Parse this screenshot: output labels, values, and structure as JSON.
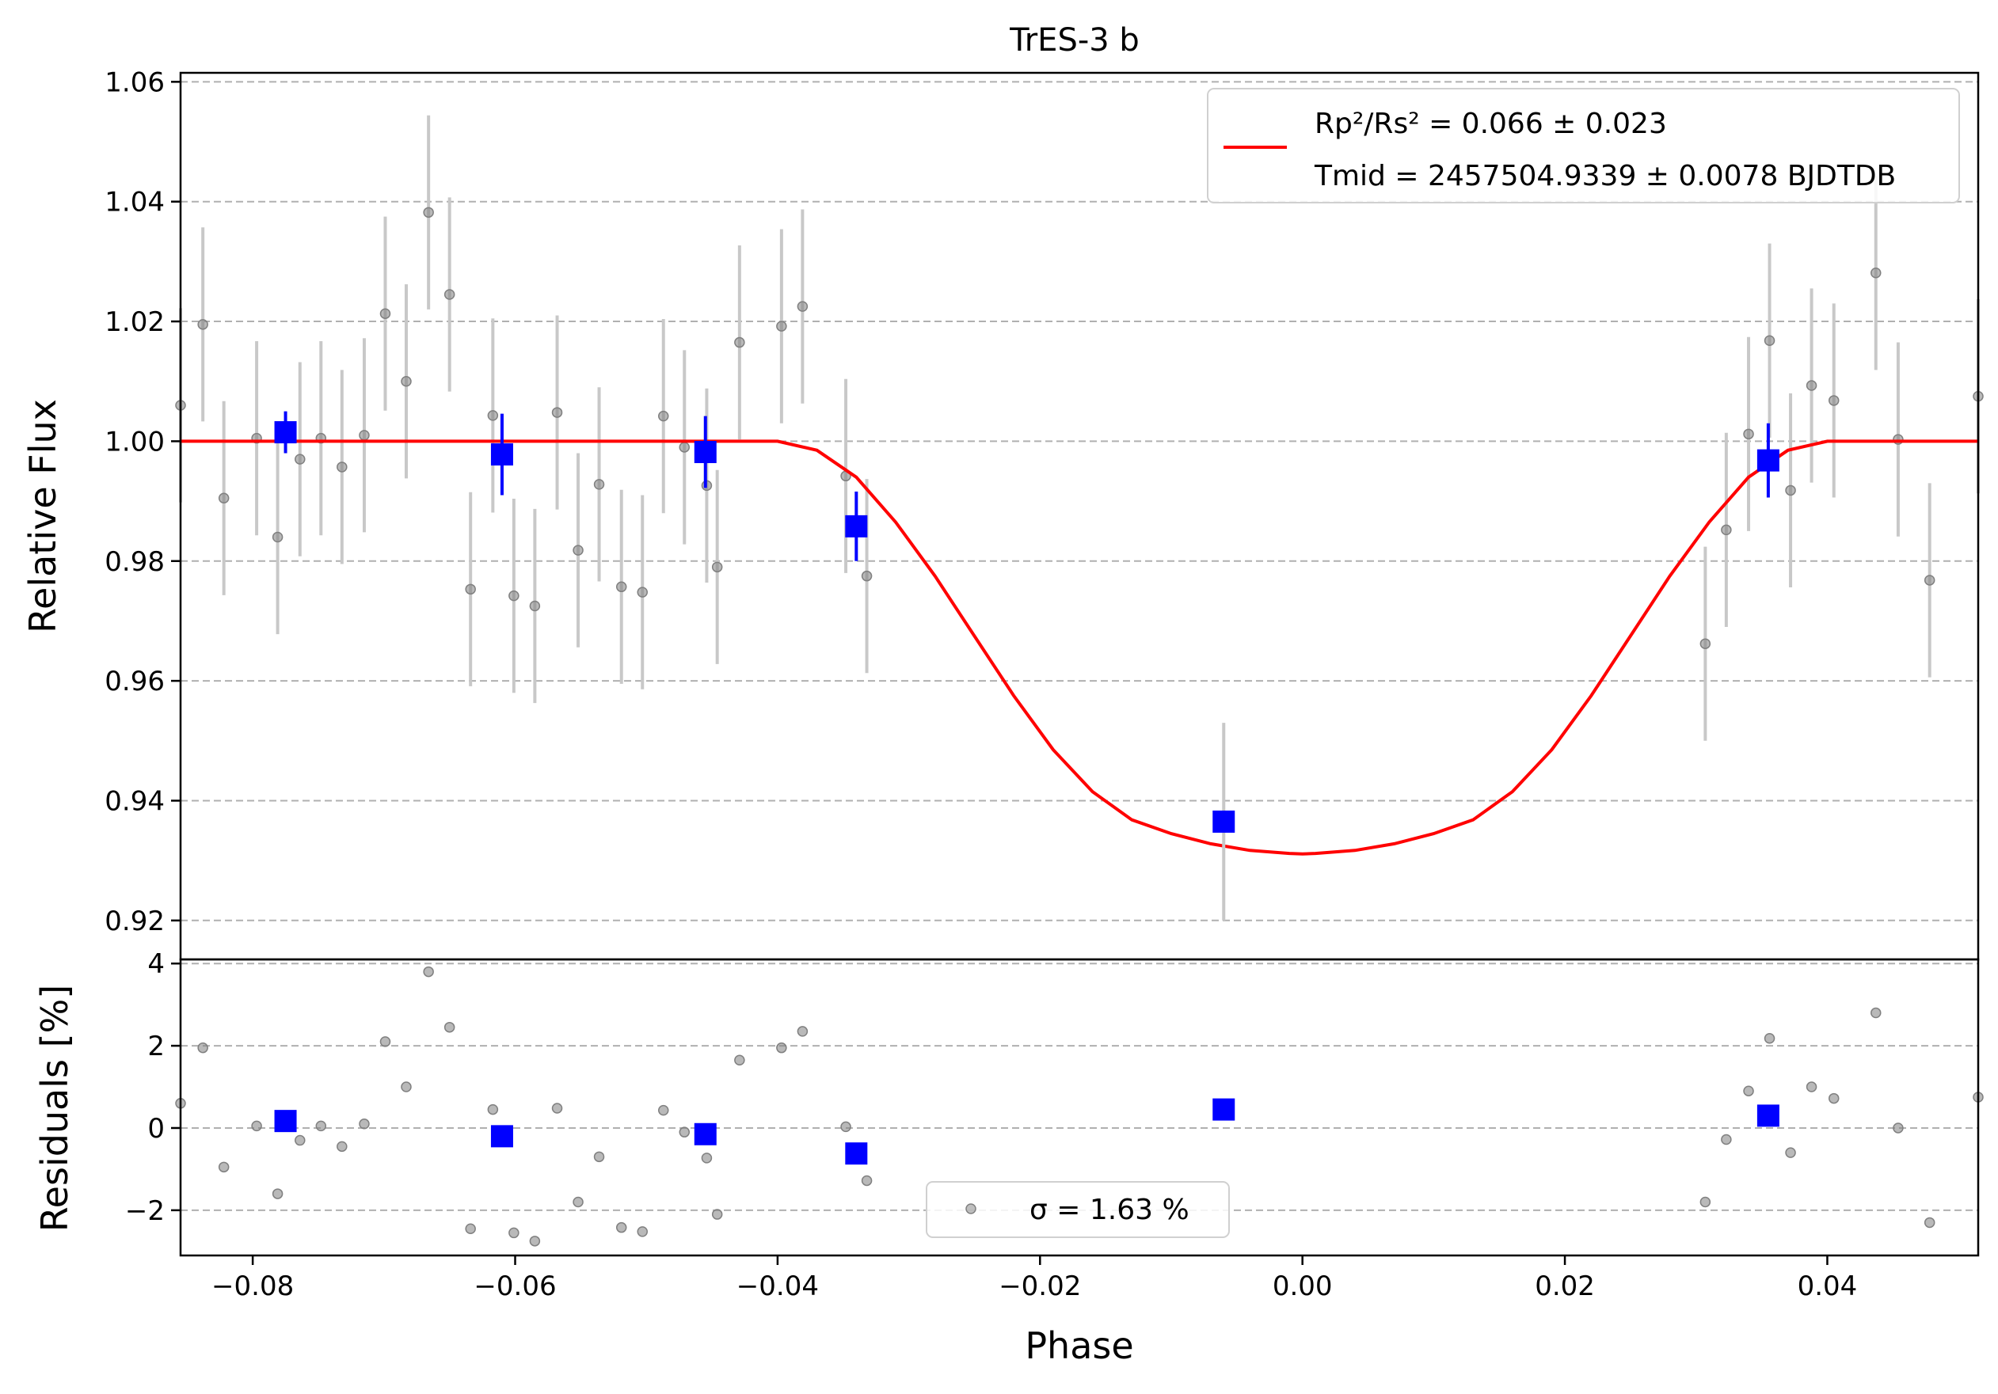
{
  "chart_data": {
    "type": "scatter",
    "title": "TrES-3 b",
    "xlabel": "Phase",
    "top_panel": {
      "ylabel": "Relative Flux",
      "xlim": [
        -0.0855,
        0.0515
      ],
      "ylim": [
        0.9135,
        1.0615
      ],
      "yticks": [
        0.92,
        0.94,
        0.96,
        0.98,
        1.0,
        1.02,
        1.04,
        1.06
      ],
      "ytick_labels": [
        "0.92",
        "0.94",
        "0.96",
        "0.98",
        "1.00",
        "1.02",
        "1.04",
        "1.06"
      ],
      "grid": "horizontal dashed",
      "legend_position": "top-right",
      "legend": {
        "model_line": "Rp²/Rs² = 0.066 ± 0.023",
        "mid_time": "Tmid = 2457504.9339 ± 0.0078 BJDTDB"
      },
      "model": {
        "name": "transit model",
        "color": "#ff0000",
        "phase": [
          -0.0855,
          -0.04,
          -0.037,
          -0.034,
          -0.031,
          -0.028,
          -0.025,
          -0.022,
          -0.019,
          -0.016,
          -0.013,
          -0.01,
          -0.007,
          -0.004,
          -0.001,
          0.0,
          0.001,
          0.004,
          0.007,
          0.01,
          0.013,
          0.016,
          0.019,
          0.022,
          0.025,
          0.028,
          0.031,
          0.034,
          0.037,
          0.04,
          0.0515
        ],
        "flux": [
          1.0,
          1.0,
          0.9985,
          0.994,
          0.9865,
          0.9775,
          0.9675,
          0.9575,
          0.9485,
          0.9415,
          0.9368,
          0.9345,
          0.9328,
          0.9317,
          0.9312,
          0.9311,
          0.9312,
          0.9317,
          0.9328,
          0.9345,
          0.9368,
          0.9415,
          0.9485,
          0.9575,
          0.9675,
          0.9775,
          0.9865,
          0.994,
          0.9985,
          1.0,
          1.0
        ]
      },
      "raw_points": {
        "color": "#808080",
        "phase": [
          -0.0855,
          -0.0838,
          -0.0822,
          -0.0797,
          -0.0781,
          -0.0764,
          -0.0748,
          -0.0732,
          -0.0715,
          -0.0699,
          -0.0683,
          -0.0666,
          -0.065,
          -0.0634,
          -0.0617,
          -0.0601,
          -0.0585,
          -0.0568,
          -0.0552,
          -0.0536,
          -0.0519,
          -0.0503,
          -0.0487,
          -0.0471,
          -0.0454,
          -0.0446,
          -0.0429,
          -0.0397,
          -0.0381,
          -0.0348,
          -0.0332,
          0.0307,
          0.0323,
          0.034,
          0.0356,
          0.0372,
          0.0388,
          0.0405,
          0.0437,
          0.0454,
          0.0478,
          0.0515
        ],
        "flux": [
          1.006,
          1.0195,
          0.9905,
          1.0005,
          0.984,
          0.997,
          1.0005,
          0.9957,
          1.001,
          1.0213,
          1.01,
          1.0382,
          1.0245,
          0.9753,
          1.0043,
          0.9742,
          0.9725,
          1.0048,
          0.9818,
          0.9928,
          0.9757,
          0.9748,
          1.0042,
          0.999,
          0.9926,
          0.979,
          1.0165,
          1.0192,
          1.0225,
          0.9942,
          0.9775,
          0.9662,
          0.9852,
          1.0012,
          1.0168,
          0.9918,
          1.0093,
          1.0068,
          1.0281,
          1.0003,
          0.9768,
          1.0075
        ],
        "error": 0.0162
      },
      "binned_points": {
        "color": "#0000ff",
        "phase": [
          -0.0775,
          -0.061,
          -0.0455,
          -0.034,
          -0.006,
          0.0355
        ],
        "flux": [
          1.0015,
          0.9978,
          0.9982,
          0.9858,
          0.9365,
          0.9968
        ],
        "error": [
          0.0035,
          0.0068,
          0.006,
          0.0058,
          0.0165,
          0.0062
        ],
        "error_color": [
          "#0000ff",
          "#0000ff",
          "#0000ff",
          "#0000ff",
          "#c8c8c8",
          "#0000ff"
        ]
      }
    },
    "bottom_panel": {
      "ylabel": "Residuals [%]",
      "xlim": [
        -0.0855,
        0.0515
      ],
      "ylim": [
        -3.1,
        4.1
      ],
      "yticks": [
        -2,
        0,
        2,
        4
      ],
      "ytick_labels": [
        "−2",
        "0",
        "2",
        "4"
      ],
      "xticks": [
        -0.08,
        -0.06,
        -0.04,
        -0.02,
        0.0,
        0.02,
        0.04
      ],
      "xtick_labels": [
        "−0.08",
        "−0.06",
        "−0.04",
        "−0.02",
        "0.00",
        "0.02",
        "0.04"
      ],
      "legend": "σ = 1.63 %",
      "raw_residuals": [
        0.6,
        1.95,
        -0.95,
        0.05,
        -1.6,
        -0.3,
        0.05,
        -0.45,
        0.1,
        2.1,
        1.0,
        3.8,
        2.45,
        -2.45,
        0.45,
        -2.55,
        -2.75,
        0.48,
        -1.8,
        -0.7,
        -2.42,
        -2.52,
        0.43,
        -0.1,
        -0.73,
        -2.1,
        1.65,
        1.95,
        2.35,
        0.03,
        -1.28,
        -1.8,
        -0.28,
        0.9,
        2.18,
        -0.6,
        1.0,
        0.72,
        2.8,
        0.0,
        -2.3,
        0.75
      ],
      "binned_residuals": [
        0.17,
        -0.2,
        -0.15,
        -0.62,
        0.45,
        0.3
      ]
    }
  }
}
